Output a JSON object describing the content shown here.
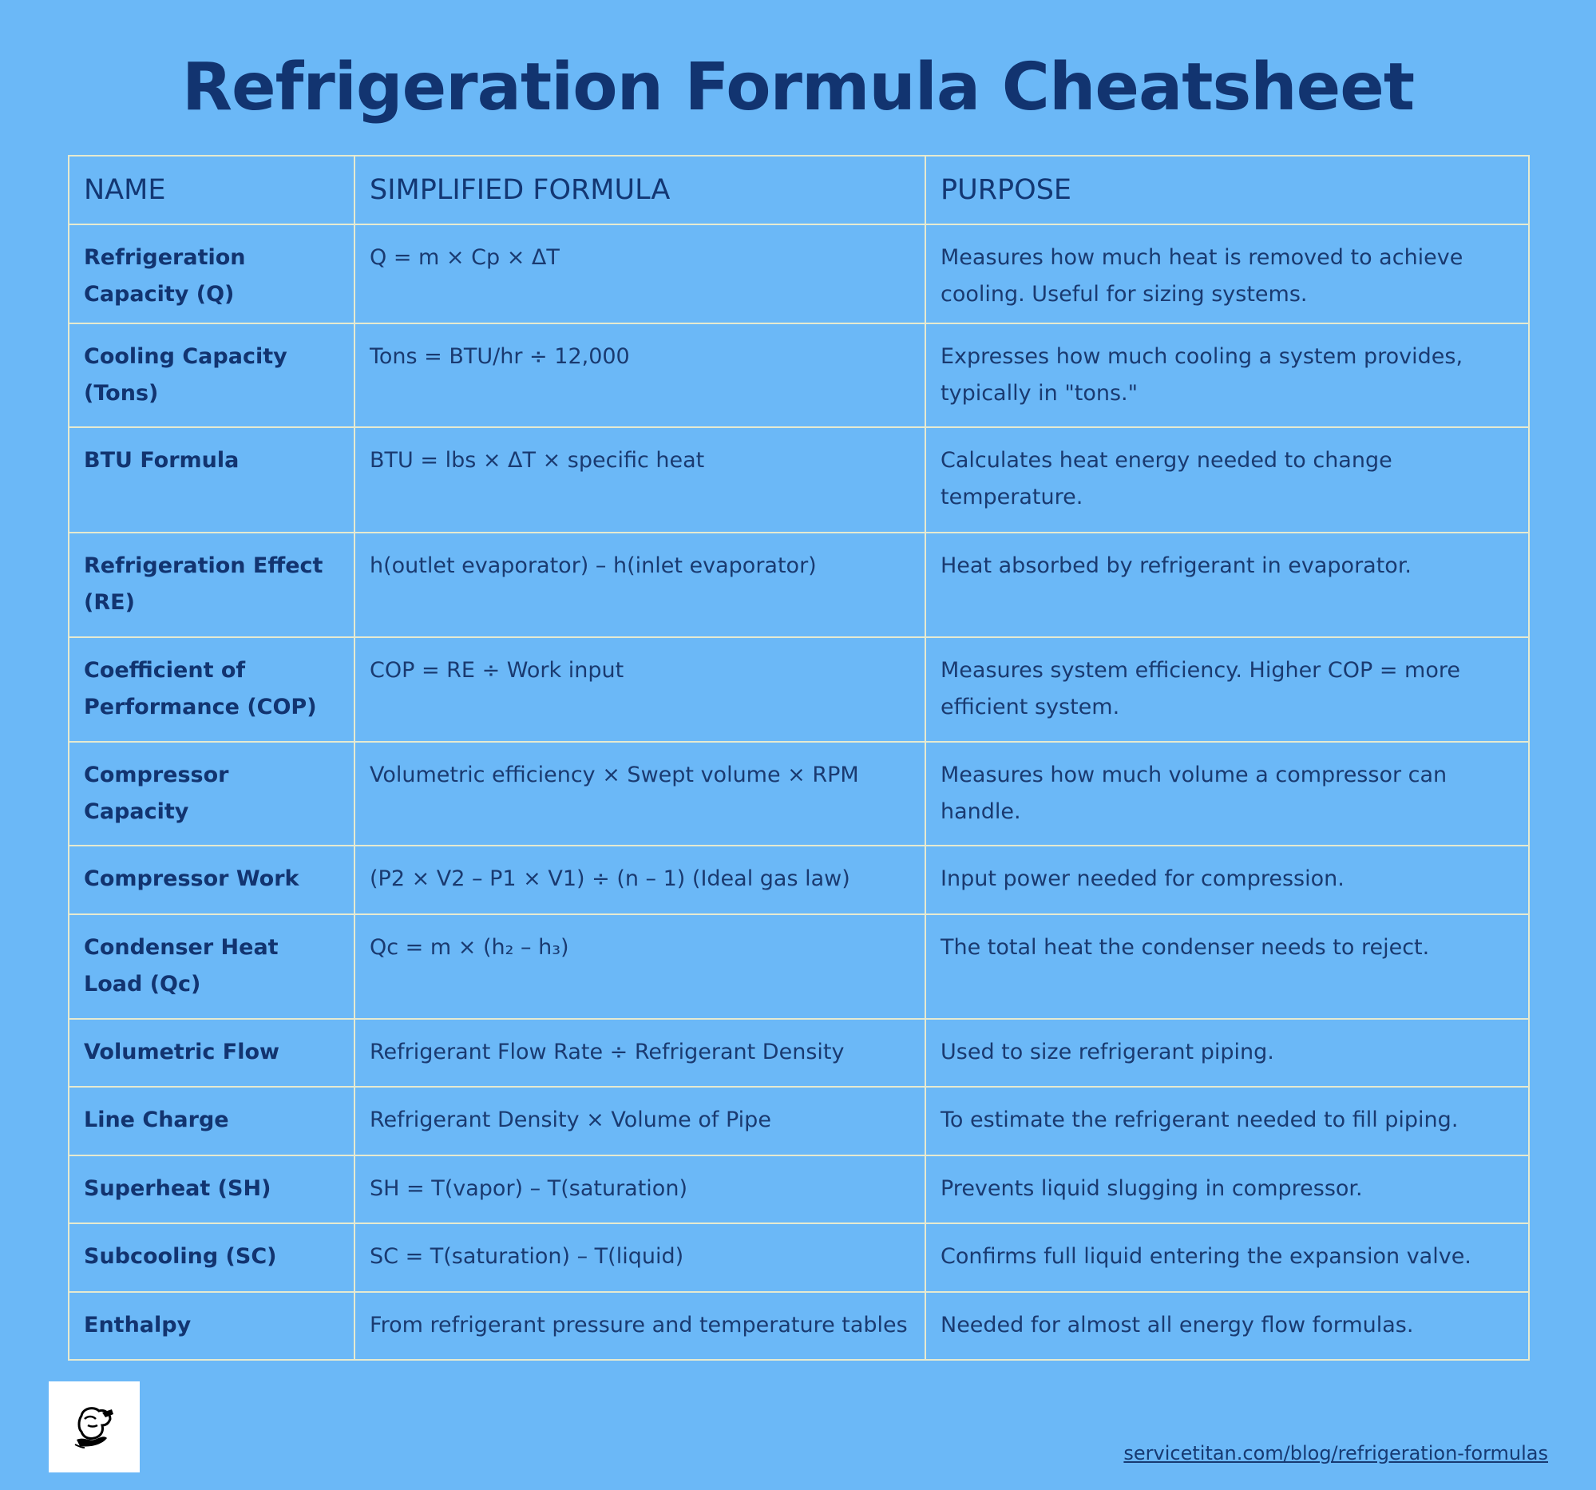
{
  "title": "Refrigeration Formula Cheatsheet",
  "table": {
    "headers": [
      "NAME",
      "SIMPLIFIED FORMULA",
      "PURPOSE"
    ],
    "rows": [
      {
        "name": "Refrigeration Capacity (Q)",
        "formula": "Q = m × Cp × ΔT",
        "purpose": "Measures how much heat is removed to achieve cooling. Useful for sizing systems.",
        "height": 124
      },
      {
        "name": "Cooling Capacity (Tons)",
        "formula": "Tons = BTU/hr ÷ 12,000",
        "purpose": "Expresses how much cooling a system provides, typically in \"tons.\"",
        "height": 130
      },
      {
        "name": "BTU Formula",
        "formula": "BTU = lbs × ΔT × specific heat",
        "purpose": "Calculates heat energy needed to change temperature.",
        "height": 132
      },
      {
        "name": "Refrigeration Effect (RE)",
        "formula": "h(outlet evaporator) – h(inlet evaporator)",
        "purpose": "Heat absorbed by refrigerant in evaporator.",
        "height": 131
      },
      {
        "name": "Coefficient of Performance (COP)",
        "formula": "COP = RE ÷ Work input",
        "purpose": "Measures system efficiency. Higher COP = more efficient system.",
        "height": 131
      },
      {
        "name": "Compressor Capacity",
        "formula": "Volumetric efficiency × Swept volume × RPM",
        "purpose": "Measures how much volume a compressor can handle.",
        "height": 130
      },
      {
        "name": "Compressor Work",
        "formula": "(P2 × V2 – P1 × V1) ÷ (n – 1) (Ideal gas law)",
        "purpose": "Input power needed for compression.",
        "height": 86
      },
      {
        "name": "Condenser Heat Load (Qc)",
        "formula": "Qc = m × (h₂ – h₃)",
        "purpose": "The total heat the condenser needs to reject.",
        "height": 131
      },
      {
        "name": "Volumetric Flow",
        "formula": "Refrigerant Flow Rate ÷ Refrigerant Density",
        "purpose": "Used to size refrigerant piping.",
        "height": 85
      },
      {
        "name": "Line Charge",
        "formula": "Refrigerant Density × Volume of Pipe",
        "purpose": "To estimate the refrigerant needed to fill piping.",
        "height": 86
      },
      {
        "name": "Superheat (SH)",
        "formula": "SH = T(vapor) – T(saturation)",
        "purpose": "Prevents liquid slugging in compressor.",
        "height": 85
      },
      {
        "name": "Subcooling (SC)",
        "formula": "SC = T(saturation) – T(liquid)",
        "purpose": "Confirms full liquid entering the expansion valve.",
        "height": 86
      },
      {
        "name": "Enthalpy",
        "formula": "From refrigerant pressure and temperature tables",
        "purpose": "Needed for almost all energy flow formulas.",
        "height": 85
      }
    ]
  },
  "logo": {
    "icon": "technician-mascot-icon"
  },
  "footer": {
    "link_text": "servicetitan.com/blog/refrigeration-formulas"
  },
  "colors": {
    "background": "#6bb8f7",
    "text": "#123470",
    "grid": "#e6ead0"
  }
}
